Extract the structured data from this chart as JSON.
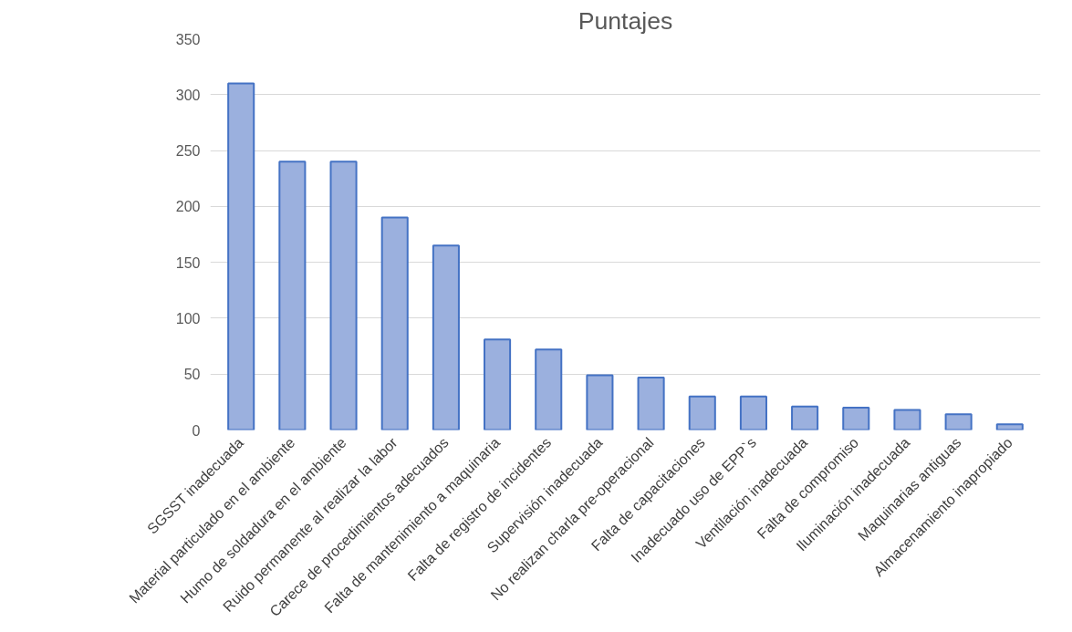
{
  "chart_data": {
    "type": "bar",
    "title": "Puntajes",
    "categories": [
      "SGSST inadecuada",
      "Material particulado en el ambiente",
      "Humo de soldadura en el ambiente",
      "Ruido permanente al realizar la labor",
      "Carece de procedimientos adecuados",
      "Falta de mantenimiento a maquinaria",
      "Falta de registro de incidentes",
      "Supervisión inadecuada",
      "No realizan charla pre-operacional",
      "Falta de capacitaciones",
      "Inadecuado uso de EPP`s",
      "Ventilación inadecuada",
      "Falta de compromiso",
      "Iluminación inadecuada",
      "Maquinarias antiguas",
      "Almacenamiento inapropiado"
    ],
    "values": [
      310,
      240,
      240,
      190,
      165,
      81,
      72,
      49,
      47,
      30,
      30,
      21,
      20,
      18,
      14,
      5
    ],
    "color": "#9bb0de",
    "ylim": [
      0,
      350
    ],
    "yticks": [
      0,
      50,
      100,
      150,
      200,
      250,
      300,
      350
    ],
    "grid": "y"
  }
}
